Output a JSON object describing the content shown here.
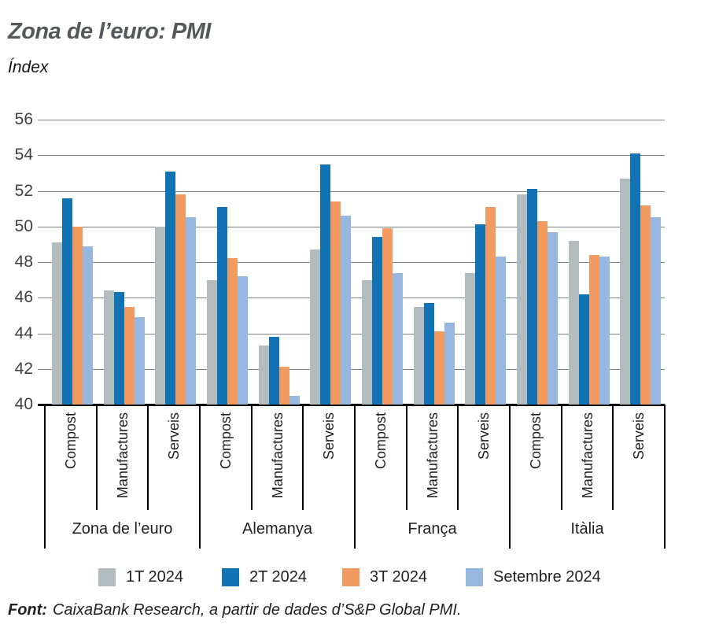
{
  "chart_data": {
    "type": "bar",
    "title": "Zona de l’euro: PMI",
    "subtitle": "Índex",
    "ylim": [
      40,
      56
    ],
    "yticks": [
      40,
      42,
      44,
      46,
      48,
      50,
      52,
      54,
      56
    ],
    "grid": true,
    "legend_position": "bottom",
    "groups": [
      {
        "region": "Zona de l’euro",
        "categories": [
          "Compost",
          "Manufactures",
          "Serveis"
        ]
      },
      {
        "region": "Alemanya",
        "categories": [
          "Compost",
          "Manufactures",
          "Serveis"
        ]
      },
      {
        "region": "França",
        "categories": [
          "Compost",
          "Manufactures",
          "Serveis"
        ]
      },
      {
        "region": "Itàlia",
        "categories": [
          "Compost",
          "Manufactures",
          "Serveis"
        ]
      }
    ],
    "series": [
      {
        "name": "1T 2024",
        "color": "#b2bcbe",
        "values": [
          49.1,
          46.4,
          50.0,
          47.0,
          43.3,
          48.7,
          47.0,
          45.5,
          47.4,
          51.8,
          49.2,
          52.7
        ]
      },
      {
        "name": "2T 2024",
        "color": "#1173b4",
        "values": [
          51.6,
          46.3,
          53.1,
          51.1,
          43.8,
          53.5,
          49.4,
          45.7,
          50.1,
          52.1,
          46.2,
          54.1
        ]
      },
      {
        "name": "3T 2024",
        "color": "#f19b63",
        "values": [
          50.0,
          45.5,
          51.8,
          48.2,
          42.1,
          51.4,
          49.9,
          44.1,
          51.1,
          50.3,
          48.4,
          51.2
        ]
      },
      {
        "name": "Setembre 2024",
        "color": "#95b7e0",
        "values": [
          48.9,
          44.9,
          50.5,
          47.2,
          40.5,
          50.6,
          47.4,
          44.6,
          48.3,
          49.7,
          48.3,
          50.5
        ]
      }
    ]
  },
  "footer": {
    "label": "Font:",
    "text": "CaixaBank Research, a partir de dades d’S&P Global PMI."
  }
}
